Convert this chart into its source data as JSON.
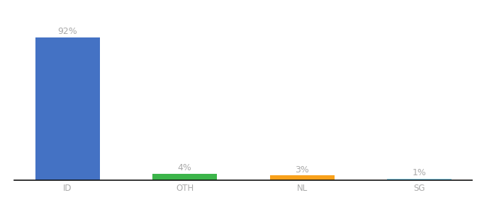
{
  "categories": [
    "ID",
    "OTH",
    "NL",
    "SG"
  ],
  "values": [
    92,
    4,
    3,
    1
  ],
  "bar_colors": [
    "#4472c4",
    "#3cb54a",
    "#f9a11b",
    "#87ceeb"
  ],
  "labels": [
    "92%",
    "4%",
    "3%",
    "1%"
  ],
  "ylim": [
    0,
    105
  ],
  "background_color": "#ffffff",
  "label_color": "#aaaaaa",
  "bar_label_fontsize": 9,
  "tick_fontsize": 8.5,
  "bar_width": 0.55
}
